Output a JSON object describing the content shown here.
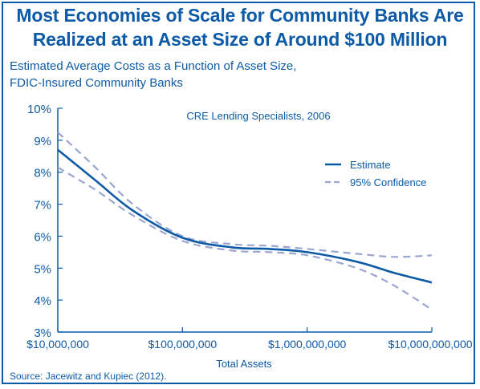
{
  "title_line1": "Most Economies of Scale for Community Banks Are",
  "title_line2": "Realized at an Asset Size of Around $100 Million",
  "subtitle_line1": "Estimated Average Costs as a Function of Asset Size,",
  "subtitle_line2": "FDIC-Insured Community Banks",
  "source": "Source: Jacewitz and Kupiec  (2012).",
  "colors": {
    "brand": "#0d5aa7",
    "ci": "#9aa6d0"
  },
  "chart_data": {
    "type": "line",
    "annotation": "CRE Lending Specialists, 2006",
    "xlabel": "Total Assets",
    "ylabel": "",
    "x_scale": "log",
    "xlim": [
      10000000,
      10000000000
    ],
    "ylim": [
      3,
      10
    ],
    "x_ticks": [
      10000000,
      100000000,
      1000000000,
      10000000000
    ],
    "x_tick_labels": [
      "$10,000,000",
      "$100,000,000",
      "$1,000,000,000",
      "$10,000,000,000"
    ],
    "y_ticks": [
      3,
      4,
      5,
      6,
      7,
      8,
      9,
      10
    ],
    "y_tick_labels": [
      "3%",
      "4%",
      "5%",
      "6%",
      "7%",
      "8%",
      "9%",
      "10%"
    ],
    "legend_position": "right",
    "x": [
      10000000,
      20000000,
      40000000,
      100000000,
      250000000,
      500000000,
      1000000000,
      2500000000,
      5000000000,
      10000000000
    ],
    "series": [
      {
        "name": "Estimate",
        "style": "solid",
        "values": [
          8.7,
          7.75,
          6.8,
          5.95,
          5.65,
          5.6,
          5.5,
          5.2,
          4.85,
          4.55
        ]
      },
      {
        "name": "95% Confidence",
        "style": "dashed",
        "values": [
          9.25,
          8.15,
          7.0,
          6.0,
          5.75,
          5.7,
          5.6,
          5.45,
          5.35,
          5.4
        ]
      },
      {
        "name": "",
        "style": "dashed",
        "values": [
          8.15,
          7.45,
          6.65,
          5.85,
          5.55,
          5.5,
          5.4,
          5.0,
          4.45,
          3.7
        ]
      }
    ]
  }
}
